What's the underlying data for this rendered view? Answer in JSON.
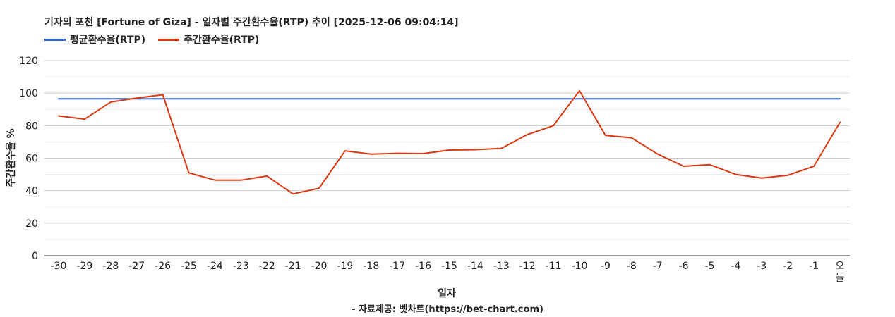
{
  "chart_data": {
    "type": "line",
    "title": "기자의 포천 [Fortune of Giza] - 일자별 주간환수율(RTP) 추이 [2025-12-06 09:04:14]",
    "xlabel": "일자",
    "ylabel": "주간환수율 %",
    "ylim": [
      0,
      120
    ],
    "yticks": [
      0,
      20,
      40,
      60,
      80,
      100,
      120
    ],
    "grid": true,
    "legend_position": "top-left",
    "categories": [
      "-30",
      "-29",
      "-28",
      "-27",
      "-26",
      "-25",
      "-24",
      "-23",
      "-22",
      "-21",
      "-20",
      "-19",
      "-18",
      "-17",
      "-16",
      "-15",
      "-14",
      "-13",
      "-12",
      "-11",
      "-10",
      "-9",
      "-8",
      "-7",
      "-6",
      "-5",
      "-4",
      "-3",
      "-2",
      "-1",
      "오늘"
    ],
    "series": [
      {
        "name": "평균환수율(RTP)",
        "color": "#3366cc",
        "values": [
          96.5,
          96.5,
          96.5,
          96.5,
          96.5,
          96.5,
          96.5,
          96.5,
          96.5,
          96.5,
          96.5,
          96.5,
          96.5,
          96.5,
          96.5,
          96.5,
          96.5,
          96.5,
          96.5,
          96.5,
          96.5,
          96.5,
          96.5,
          96.5,
          96.5,
          96.5,
          96.5,
          96.5,
          96.5,
          96.5,
          96.5
        ]
      },
      {
        "name": "주간환수율(RTP)",
        "color": "#dc3912",
        "values": [
          86,
          84,
          94.5,
          97,
          99,
          51,
          46.5,
          46.5,
          49,
          38,
          41.5,
          64.5,
          62.5,
          63,
          62.8,
          65,
          65.2,
          66,
          74.5,
          80,
          101.5,
          74,
          72.5,
          62.5,
          55,
          56,
          50,
          47.8,
          49.5,
          55,
          82
        ]
      }
    ]
  },
  "source_note": "- 자료제공: 벳차트(https://bet-chart.com)"
}
